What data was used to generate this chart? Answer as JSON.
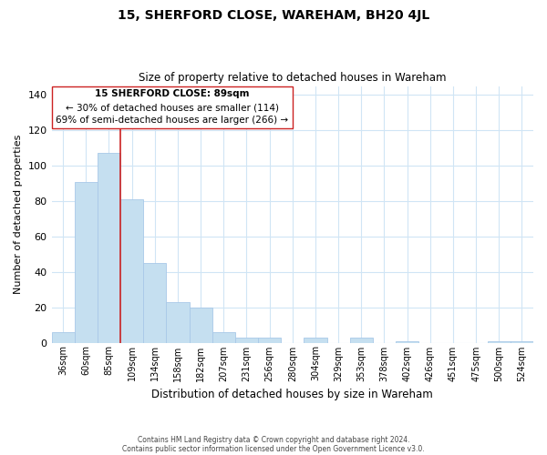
{
  "title": "15, SHERFORD CLOSE, WAREHAM, BH20 4JL",
  "subtitle": "Size of property relative to detached houses in Wareham",
  "xlabel": "Distribution of detached houses by size in Wareham",
  "ylabel": "Number of detached properties",
  "bar_labels": [
    "36sqm",
    "60sqm",
    "85sqm",
    "109sqm",
    "134sqm",
    "158sqm",
    "182sqm",
    "207sqm",
    "231sqm",
    "256sqm",
    "280sqm",
    "304sqm",
    "329sqm",
    "353sqm",
    "378sqm",
    "402sqm",
    "426sqm",
    "451sqm",
    "475sqm",
    "500sqm",
    "524sqm"
  ],
  "bar_values": [
    6,
    91,
    107,
    81,
    45,
    23,
    20,
    6,
    3,
    3,
    0,
    3,
    0,
    3,
    0,
    1,
    0,
    0,
    0,
    1,
    1
  ],
  "bar_color": "#c5dff0",
  "bar_edge_color": "#a8c8e8",
  "ylim": [
    0,
    145
  ],
  "yticks": [
    0,
    20,
    40,
    60,
    80,
    100,
    120,
    140
  ],
  "vline_x": 3,
  "vline_color": "#cc2222",
  "annotation_title": "15 SHERFORD CLOSE: 89sqm",
  "annotation_line1": "← 30% of detached houses are smaller (114)",
  "annotation_line2": "69% of semi-detached houses are larger (266) →",
  "footnote1": "Contains HM Land Registry data © Crown copyright and database right 2024.",
  "footnote2": "Contains public sector information licensed under the Open Government Licence v3.0.",
  "background_color": "#ffffff",
  "grid_color": "#d0e5f5"
}
